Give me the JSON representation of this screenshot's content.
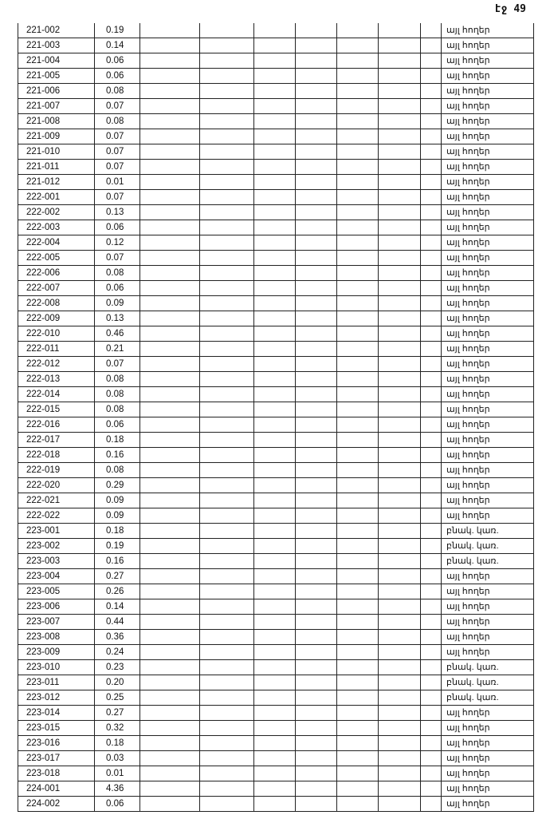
{
  "page_label": "էջ 49",
  "rows": [
    {
      "id": "221-002",
      "area": "0.19",
      "type": "այլ հողեր"
    },
    {
      "id": "221-003",
      "area": "0.14",
      "type": "այլ հողեր"
    },
    {
      "id": "221-004",
      "area": "0.06",
      "type": "այլ հողեր"
    },
    {
      "id": "221-005",
      "area": "0.06",
      "type": "այլ հողեր"
    },
    {
      "id": "221-006",
      "area": "0.08",
      "type": "այլ հողեր"
    },
    {
      "id": "221-007",
      "area": "0.07",
      "type": "այլ հողեր"
    },
    {
      "id": "221-008",
      "area": "0.08",
      "type": "այլ հողեր"
    },
    {
      "id": "221-009",
      "area": "0.07",
      "type": "այլ հողեր"
    },
    {
      "id": "221-010",
      "area": "0.07",
      "type": "այլ հողեր"
    },
    {
      "id": "221-011",
      "area": "0.07",
      "type": "այլ հողեր"
    },
    {
      "id": "221-012",
      "area": "0.01",
      "type": "այլ հողեր"
    },
    {
      "id": "222-001",
      "area": "0.07",
      "type": "այլ հողեր"
    },
    {
      "id": "222-002",
      "area": "0.13",
      "type": "այլ հողեր"
    },
    {
      "id": "222-003",
      "area": "0.06",
      "type": "այլ հողեր"
    },
    {
      "id": "222-004",
      "area": "0.12",
      "type": "այլ հողեր"
    },
    {
      "id": "222-005",
      "area": "0.07",
      "type": "այլ հողեր"
    },
    {
      "id": "222-006",
      "area": "0.08",
      "type": "այլ հողեր"
    },
    {
      "id": "222-007",
      "area": "0.06",
      "type": "այլ հողեր"
    },
    {
      "id": "222-008",
      "area": "0.09",
      "type": "այլ հողեր"
    },
    {
      "id": "222-009",
      "area": "0.13",
      "type": "այլ հողեր"
    },
    {
      "id": "222-010",
      "area": "0.46",
      "type": "այլ հողեր"
    },
    {
      "id": "222-011",
      "area": "0.21",
      "type": "այլ հողեր"
    },
    {
      "id": "222-012",
      "area": "0.07",
      "type": "այլ հողեր"
    },
    {
      "id": "222-013",
      "area": "0.08",
      "type": "այլ հողեր"
    },
    {
      "id": "222-014",
      "area": "0.08",
      "type": "այլ հողեր"
    },
    {
      "id": "222-015",
      "area": "0.08",
      "type": "այլ հողեր"
    },
    {
      "id": "222-016",
      "area": "0.06",
      "type": "այլ հողեր"
    },
    {
      "id": "222-017",
      "area": "0.18",
      "type": "այլ հողեր"
    },
    {
      "id": "222-018",
      "area": "0.16",
      "type": "այլ հողեր"
    },
    {
      "id": "222-019",
      "area": "0.08",
      "type": "այլ հողեր"
    },
    {
      "id": "222-020",
      "area": "0.29",
      "type": "այլ հողեր"
    },
    {
      "id": "222-021",
      "area": "0.09",
      "type": "այլ հողեր"
    },
    {
      "id": "222-022",
      "area": "0.09",
      "type": "այլ հողեր"
    },
    {
      "id": "223-001",
      "area": "0.18",
      "type": "բնակ. կառ."
    },
    {
      "id": "223-002",
      "area": "0.19",
      "type": "բնակ. կառ."
    },
    {
      "id": "223-003",
      "area": "0.16",
      "type": "բնակ. կառ."
    },
    {
      "id": "223-004",
      "area": "0.27",
      "type": "այլ հողեր"
    },
    {
      "id": "223-005",
      "area": "0.26",
      "type": "այլ հողեր"
    },
    {
      "id": "223-006",
      "area": "0.14",
      "type": "այլ հողեր"
    },
    {
      "id": "223-007",
      "area": "0.44",
      "type": "այլ հողեր"
    },
    {
      "id": "223-008",
      "area": "0.36",
      "type": "այլ հողեր"
    },
    {
      "id": "223-009",
      "area": "0.24",
      "type": "այլ հողեր"
    },
    {
      "id": "223-010",
      "area": "0.23",
      "type": "բնակ. կառ."
    },
    {
      "id": "223-011",
      "area": "0.20",
      "type": "բնակ. կառ."
    },
    {
      "id": "223-012",
      "area": "0.25",
      "type": "բնակ. կառ."
    },
    {
      "id": "223-014",
      "area": "0.27",
      "type": "այլ հողեր"
    },
    {
      "id": "223-015",
      "area": "0.32",
      "type": "այլ հողեր"
    },
    {
      "id": "223-016",
      "area": "0.18",
      "type": "այլ հողեր"
    },
    {
      "id": "223-017",
      "area": "0.03",
      "type": "այլ հողեր"
    },
    {
      "id": "223-018",
      "area": "0.01",
      "type": "այլ հողեր"
    },
    {
      "id": "224-001",
      "area": "4.36",
      "type": "այլ հողեր"
    },
    {
      "id": "224-002",
      "area": "0.06",
      "type": "այլ հողեր"
    }
  ]
}
